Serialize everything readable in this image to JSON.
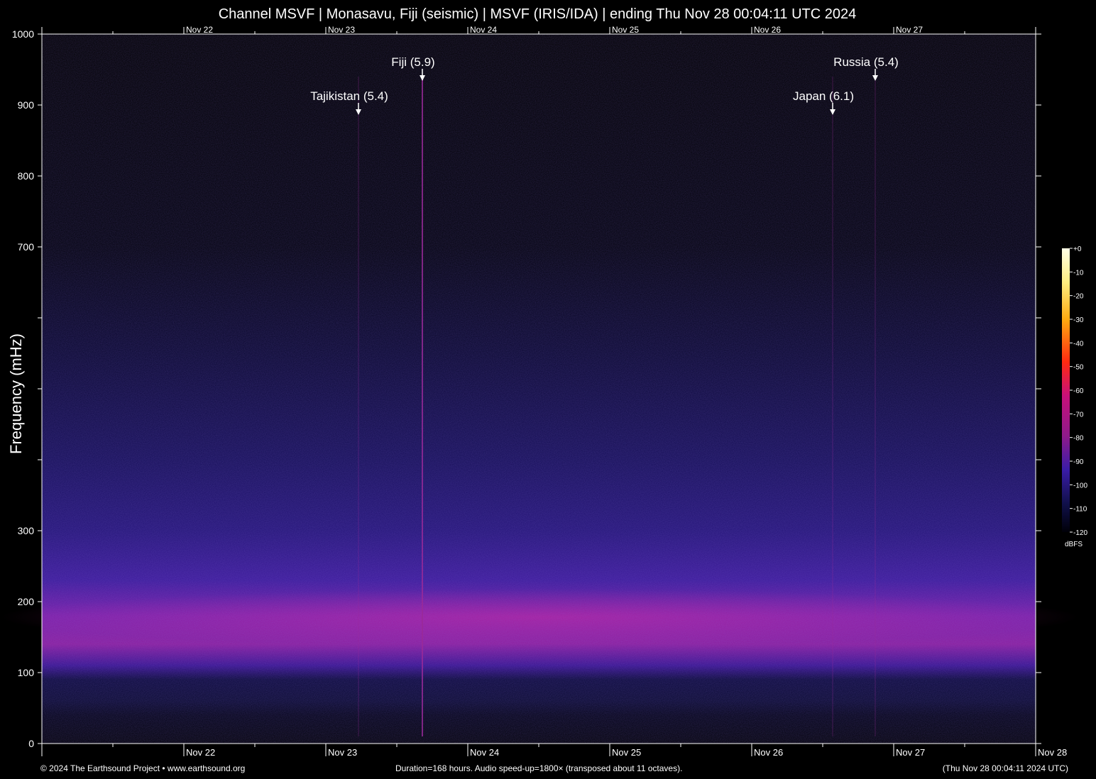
{
  "header": {
    "title": "Channel MSVF | Monasavu, Fiji (seismic) | MSVF (IRIS/IDA) | ending Thu Nov 28 00:04:11 UTC 2024"
  },
  "footer": {
    "copyright": "© 2024 The Earthsound Project • www.earthsound.org",
    "duration": "Duration=168 hours. Audio speed-up=1800× (transposed about 11 octaves).",
    "timestamp": "(Thu Nov 28 00:04:11 2024 UTC)"
  },
  "colors": {
    "background": "#000000",
    "low": "#06061e",
    "mid": "#3a1aa8",
    "high": "#b21a9a",
    "peak": "#ff2020",
    "top": "#ffffcc"
  },
  "chart_data": {
    "type": "heatmap",
    "title": "Channel MSVF | Monasavu, Fiji (seismic) | MSVF (IRIS/IDA) | ending Thu Nov 28 00:04:11 UTC 2024",
    "xlabel": "",
    "ylabel": "Frequency (mHz)",
    "ylim": [
      0,
      1000
    ],
    "y_ticks": [
      0,
      100,
      200,
      300,
      400,
      500,
      600,
      700,
      800,
      900,
      1000
    ],
    "y_tick_labels": [
      "0",
      "100",
      "200",
      "300",
      "",
      "",
      "",
      "700",
      "800",
      "900",
      "1000"
    ],
    "x_range_days": [
      -1.0,
      6.0
    ],
    "x_ticks": [
      {
        "day": 0,
        "label": "Nov 22"
      },
      {
        "day": 1,
        "label": "Nov 23"
      },
      {
        "day": 2,
        "label": "Nov 24"
      },
      {
        "day": 3,
        "label": "Nov 25"
      },
      {
        "day": 4,
        "label": "Nov 26"
      },
      {
        "day": 5,
        "label": "Nov 27"
      },
      {
        "day": 6,
        "label": "Nov 28"
      }
    ],
    "colorbar": {
      "unit": "dBFS",
      "ticks": [
        0,
        -10,
        -20,
        -30,
        -40,
        -50,
        -60,
        -70,
        -80,
        -90,
        -100,
        -110,
        -120
      ],
      "tick_labels": [
        "+0",
        "-10",
        "-20",
        "-30",
        "-40",
        "-50",
        "-60",
        "-70",
        "-80",
        "-90",
        "-100",
        "-110",
        "-120"
      ]
    },
    "annotations": [
      {
        "label": "Tajikistan (5.4)",
        "day": 1.23,
        "row": 2
      },
      {
        "label": "Fiji (5.9)",
        "day": 1.68,
        "row": 1
      },
      {
        "label": "Japan (6.1)",
        "day": 4.57,
        "row": 2
      },
      {
        "label": "Russia (5.4)",
        "day": 4.87,
        "row": 1
      }
    ],
    "legend": "right"
  }
}
